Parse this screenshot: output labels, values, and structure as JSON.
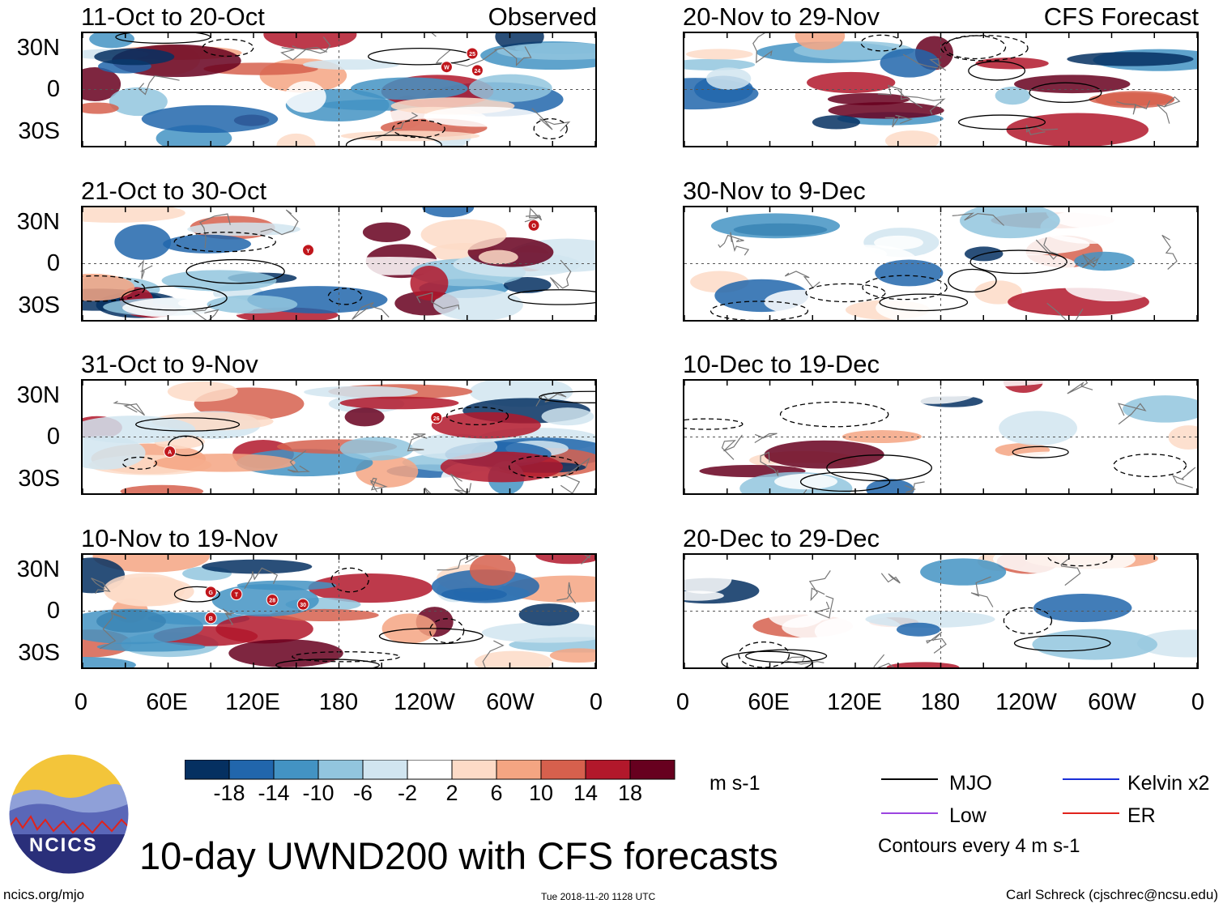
{
  "chart_data": {
    "type": "heatmap",
    "title": "10-day UWND200 with CFS forecasts",
    "units": "m s-1",
    "x_ticks": [
      "0",
      "60E",
      "120E",
      "180",
      "120W",
      "60W",
      "0"
    ],
    "y_ticks": [
      "30N",
      "0",
      "30S"
    ],
    "colorbar_ticks": [
      "-18",
      "-14",
      "-10",
      "-6",
      "-2",
      "2",
      "6",
      "10",
      "14",
      "18"
    ],
    "colorbar_colors": [
      "#053061",
      "#2166ac",
      "#4393c3",
      "#92c5de",
      "#d1e5f0",
      "#ffffff",
      "#fddbc7",
      "#f4a582",
      "#d6604d",
      "#b2182b",
      "#67001f"
    ],
    "observed_label": "Observed",
    "forecast_label": "CFS Forecast",
    "panels": [
      {
        "period": "11-Oct to 20-Oct",
        "source": "Observed",
        "storms": [
          "W",
          "24",
          "25"
        ]
      },
      {
        "period": "21-Oct to 30-Oct",
        "source": "Observed",
        "storms": [
          "Y",
          "O"
        ]
      },
      {
        "period": "31-Oct to 9-Nov",
        "source": "Observed",
        "storms": [
          "A",
          "26"
        ]
      },
      {
        "period": "10-Nov to 19-Nov",
        "source": "Observed",
        "storms": [
          "G",
          "T",
          "28",
          "B",
          "30"
        ]
      },
      {
        "period": "20-Nov to 29-Nov",
        "source": "CFS Forecast",
        "storms": []
      },
      {
        "period": "30-Nov to 9-Dec",
        "source": "CFS Forecast",
        "storms": []
      },
      {
        "period": "10-Dec to 19-Dec",
        "source": "CFS Forecast",
        "storms": []
      },
      {
        "period": "20-Dec to 29-Dec",
        "source": "CFS Forecast",
        "storms": []
      }
    ],
    "legend": [
      {
        "name": "MJO",
        "color": "#000000"
      },
      {
        "name": "Kelvin x2",
        "color": "#1a2fd8"
      },
      {
        "name": "Low",
        "color": "#9b44e0"
      },
      {
        "name": "ER",
        "color": "#e0231c"
      }
    ],
    "contour_note": "Contours every 4 m s-1"
  },
  "logo_text": "NCICS",
  "footer": {
    "left": "ncics.org/mjo",
    "center": "Tue 2018-11-20 1128 UTC",
    "right": "Carl Schreck (cjschrec@ncsu.edu)"
  }
}
